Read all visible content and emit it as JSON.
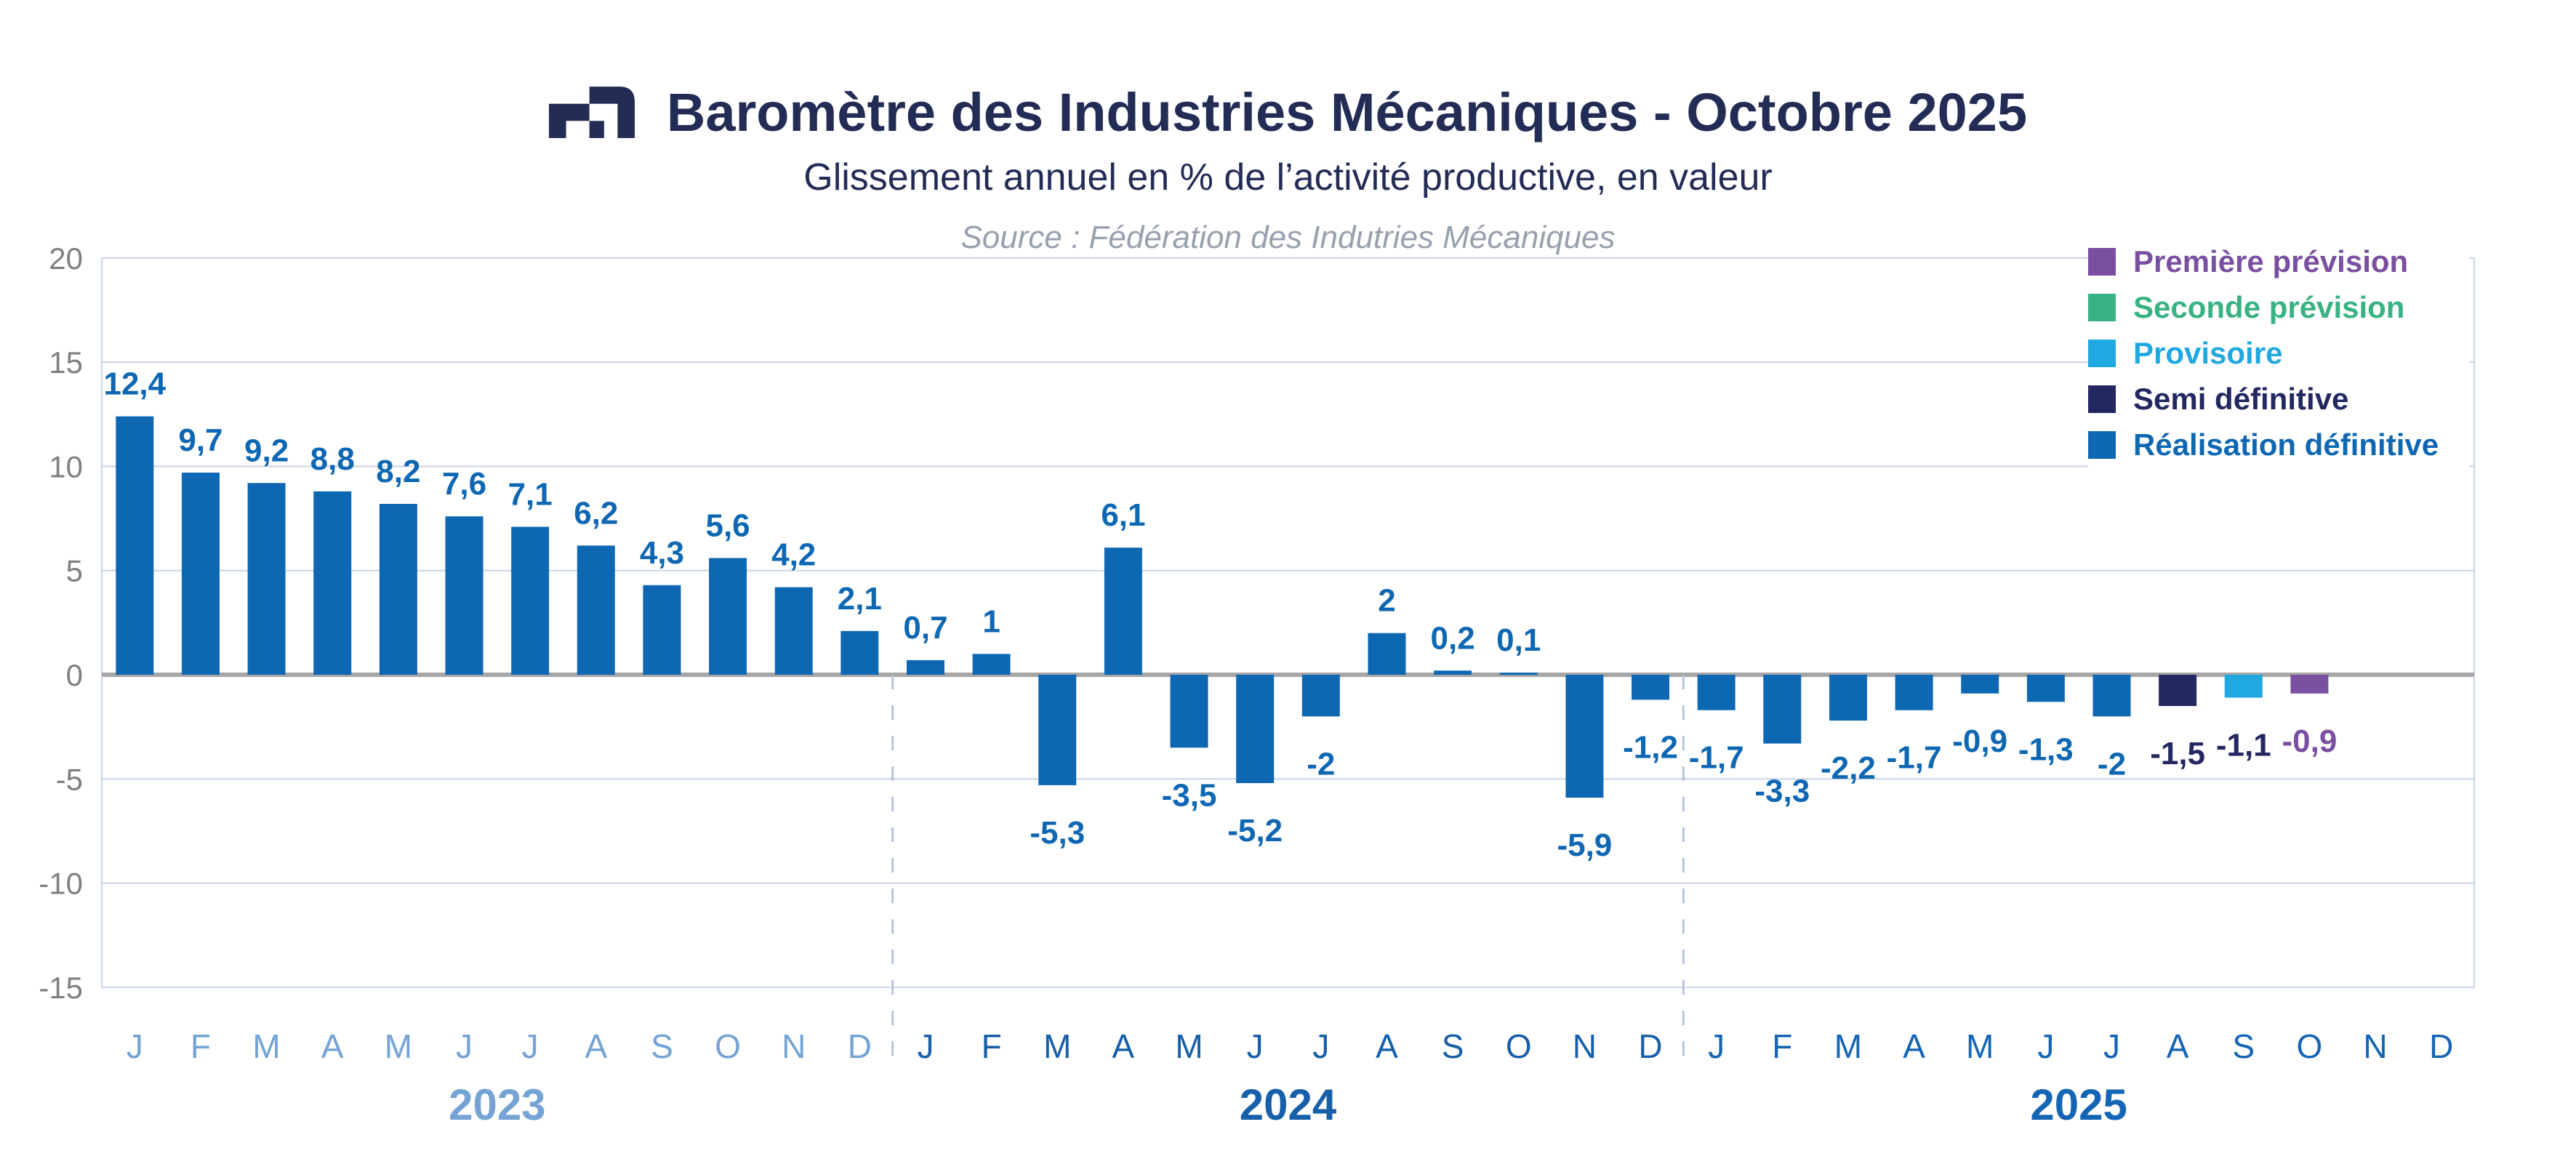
{
  "header": {
    "title": "Baromètre des Industries Mécaniques - Octobre 2025",
    "subtitle": "Glissement annuel en % de l’activité productive, en valeur",
    "source": "Source : Fédération des Indutries Mécaniques"
  },
  "legend": [
    {
      "label": "Première prévision",
      "color": "#7A4FA0"
    },
    {
      "label": "Seconde prévision",
      "color": "#39B283"
    },
    {
      "label": "Provisoire",
      "color": "#1FA9E0"
    },
    {
      "label": "Semi définitive",
      "color": "#232861"
    },
    {
      "label": "Réalisation définitive",
      "color": "#0E67B2"
    }
  ],
  "chart_data": {
    "type": "bar",
    "title": "Baromètre des Industries Mécaniques - Octobre 2025",
    "subtitle": "Glissement annuel en % de l’activité productive, en valeur",
    "source": "Source : Fédération des Indutries Mécaniques",
    "ylabel": "",
    "xlabel": "",
    "ylim": [
      -15,
      20
    ],
    "ytick_step": 5,
    "yticks": [
      20,
      15,
      10,
      5,
      0,
      -5,
      -10,
      -15
    ],
    "grid": true,
    "legend_position": "top-right",
    "value_format": "decimal-comma",
    "series_styles": {
      "realisation_definitive": {
        "bar": "#0E67B2",
        "label": "#0E67B2"
      },
      "semi_definitive": {
        "bar": "#232861",
        "label": "#232861"
      },
      "provisoire": {
        "bar": "#1FA9E0",
        "label": "#232861"
      },
      "premiere_prevision": {
        "bar": "#7A4FA0",
        "label": "#7A4FA0"
      },
      "seconde_prevision": {
        "bar": "#39B283",
        "label": "#39B283"
      }
    },
    "axis_colors": {
      "tick_text": "#7F7F7F",
      "gridline": "#C9D2E8",
      "zero_line": "#A6A6A6",
      "dashed_separator": "#B7C3DD",
      "year_2023": "#74A3D4",
      "year_2024": "#175FA9",
      "year_2025": "#1565B5"
    },
    "years": [
      "2023",
      "2024",
      "2025"
    ],
    "points": [
      {
        "year": "2023",
        "m": "J",
        "v": 12.4,
        "t": "12,4",
        "cat": "realisation_definitive"
      },
      {
        "year": "2023",
        "m": "F",
        "v": 9.7,
        "t": "9,7",
        "cat": "realisation_definitive"
      },
      {
        "year": "2023",
        "m": "M",
        "v": 9.2,
        "t": "9,2",
        "cat": "realisation_definitive"
      },
      {
        "year": "2023",
        "m": "A",
        "v": 8.8,
        "t": "8,8",
        "cat": "realisation_definitive"
      },
      {
        "year": "2023",
        "m": "M",
        "v": 8.2,
        "t": "8,2",
        "cat": "realisation_definitive"
      },
      {
        "year": "2023",
        "m": "J",
        "v": 7.6,
        "t": "7,6",
        "cat": "realisation_definitive"
      },
      {
        "year": "2023",
        "m": "J",
        "v": 7.1,
        "t": "7,1",
        "cat": "realisation_definitive"
      },
      {
        "year": "2023",
        "m": "A",
        "v": 6.2,
        "t": "6,2",
        "cat": "realisation_definitive"
      },
      {
        "year": "2023",
        "m": "S",
        "v": 4.3,
        "t": "4,3",
        "cat": "realisation_definitive"
      },
      {
        "year": "2023",
        "m": "O",
        "v": 5.6,
        "t": "5,6",
        "cat": "realisation_definitive"
      },
      {
        "year": "2023",
        "m": "N",
        "v": 4.2,
        "t": "4,2",
        "cat": "realisation_definitive"
      },
      {
        "year": "2023",
        "m": "D",
        "v": 2.1,
        "t": "2,1",
        "cat": "realisation_definitive"
      },
      {
        "year": "2024",
        "m": "J",
        "v": 0.7,
        "t": "0,7",
        "cat": "realisation_definitive"
      },
      {
        "year": "2024",
        "m": "F",
        "v": 1,
        "t": "1",
        "cat": "realisation_definitive"
      },
      {
        "year": "2024",
        "m": "M",
        "v": -5.3,
        "t": "-5,3",
        "cat": "realisation_definitive"
      },
      {
        "year": "2024",
        "m": "A",
        "v": 6.1,
        "t": "6,1",
        "cat": "realisation_definitive"
      },
      {
        "year": "2024",
        "m": "M",
        "v": -3.5,
        "t": "-3,5",
        "cat": "realisation_definitive"
      },
      {
        "year": "2024",
        "m": "J",
        "v": -5.2,
        "t": "-5,2",
        "cat": "realisation_definitive"
      },
      {
        "year": "2024",
        "m": "J",
        "v": -2,
        "t": "-2",
        "cat": "realisation_definitive"
      },
      {
        "year": "2024",
        "m": "A",
        "v": 2,
        "t": "2",
        "cat": "realisation_definitive"
      },
      {
        "year": "2024",
        "m": "S",
        "v": 0.2,
        "t": "0,2",
        "cat": "realisation_definitive"
      },
      {
        "year": "2024",
        "m": "O",
        "v": 0.1,
        "t": "0,1",
        "cat": "realisation_definitive"
      },
      {
        "year": "2024",
        "m": "N",
        "v": -5.9,
        "t": "-5,9",
        "cat": "realisation_definitive"
      },
      {
        "year": "2024",
        "m": "D",
        "v": -1.2,
        "t": "-1,2",
        "cat": "realisation_definitive"
      },
      {
        "year": "2025",
        "m": "J",
        "v": -1.7,
        "t": "-1,7",
        "cat": "realisation_definitive"
      },
      {
        "year": "2025",
        "m": "F",
        "v": -3.3,
        "t": "-3,3",
        "cat": "realisation_definitive"
      },
      {
        "year": "2025",
        "m": "M",
        "v": -2.2,
        "t": "-2,2",
        "cat": "realisation_definitive"
      },
      {
        "year": "2025",
        "m": "A",
        "v": -1.7,
        "t": "-1,7",
        "cat": "realisation_definitive"
      },
      {
        "year": "2025",
        "m": "M",
        "v": -0.9,
        "t": "-0,9",
        "cat": "realisation_definitive"
      },
      {
        "year": "2025",
        "m": "J",
        "v": -1.3,
        "t": "-1,3",
        "cat": "realisation_definitive"
      },
      {
        "year": "2025",
        "m": "J",
        "v": -2,
        "t": "-2",
        "cat": "realisation_definitive"
      },
      {
        "year": "2025",
        "m": "A",
        "v": -1.5,
        "t": "-1,5",
        "cat": "semi_definitive"
      },
      {
        "year": "2025",
        "m": "S",
        "v": -1.1,
        "t": "-1,1",
        "cat": "provisoire"
      },
      {
        "year": "2025",
        "m": "O",
        "v": -0.9,
        "t": "-0,9",
        "cat": "premiere_prevision"
      },
      {
        "year": "2025",
        "m": "N",
        "v": null,
        "t": "",
        "cat": "none"
      },
      {
        "year": "2025",
        "m": "D",
        "v": null,
        "t": "",
        "cat": "none"
      }
    ]
  }
}
